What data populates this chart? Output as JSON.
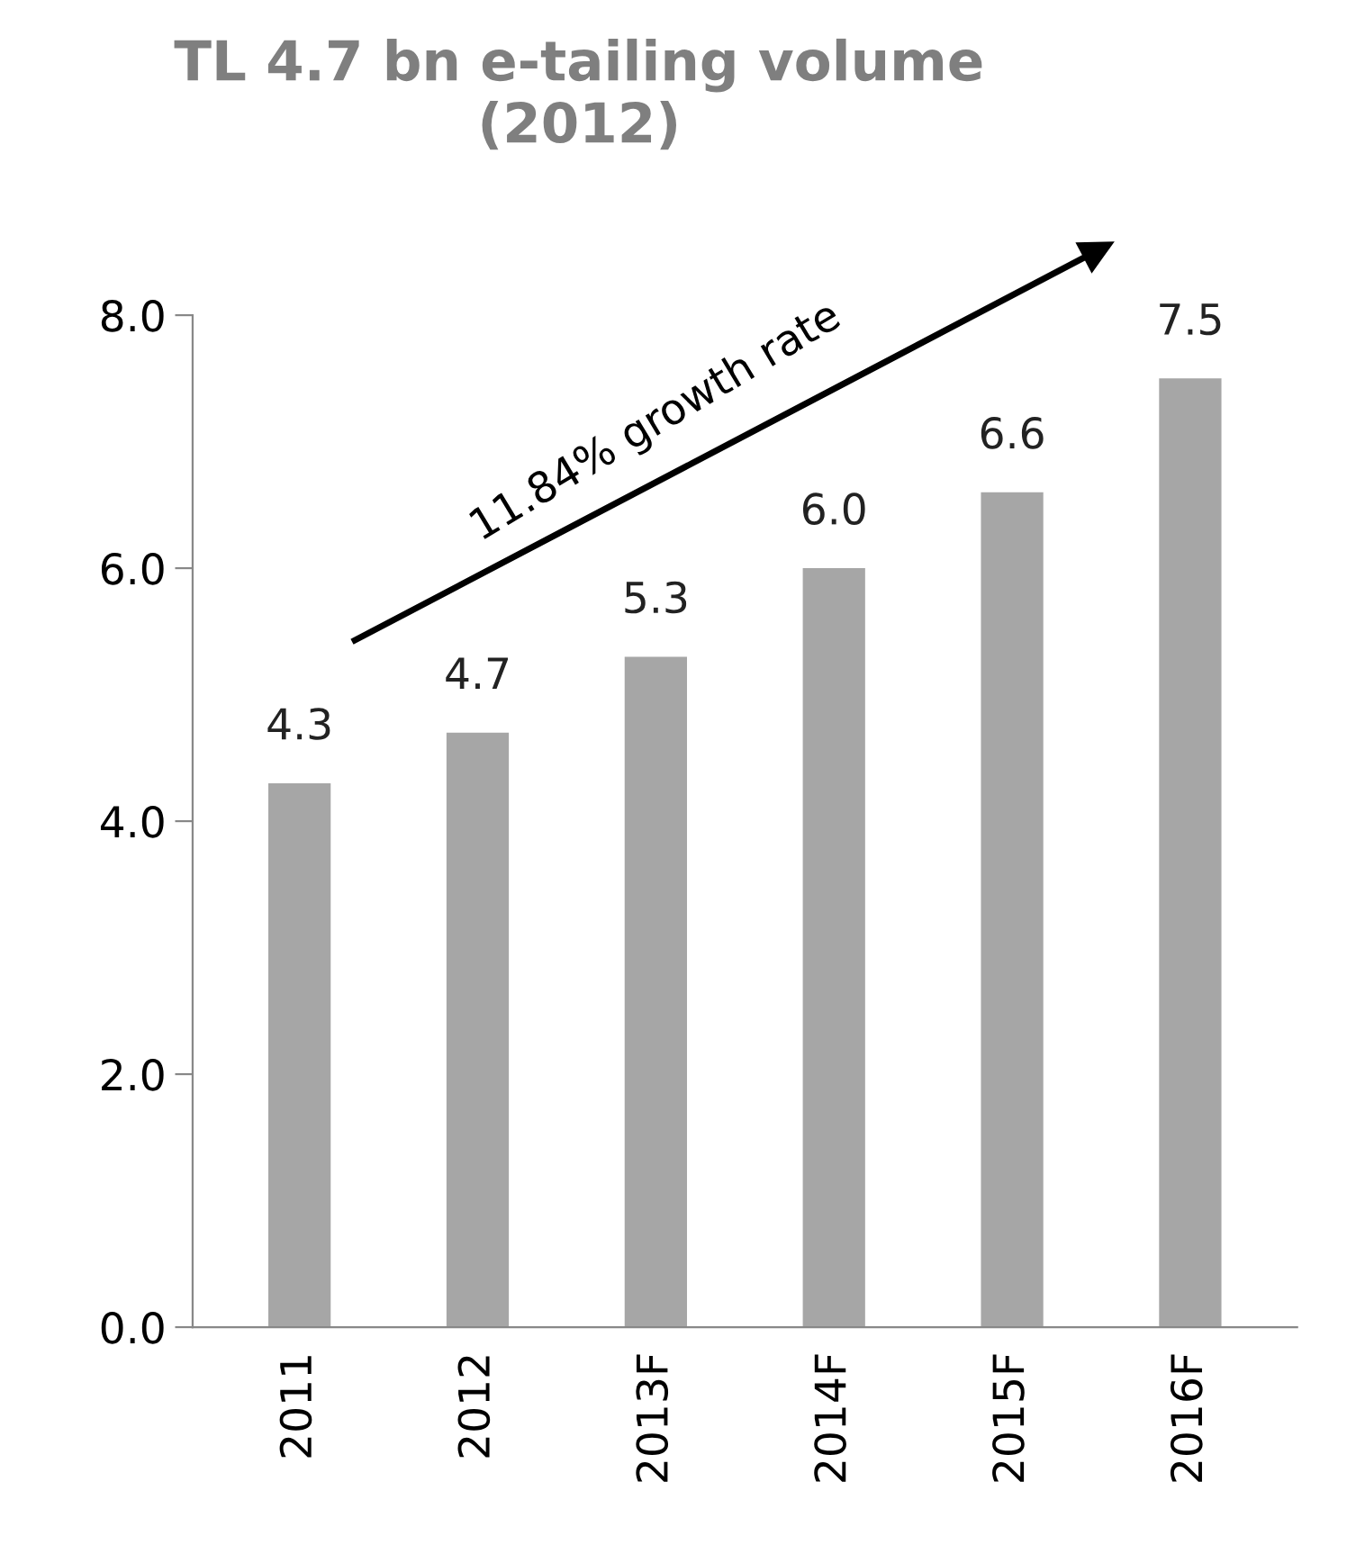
{
  "chart_data": {
    "type": "bar",
    "title": "TL 4.7 bn e-tailing volume\n(2012)",
    "categories": [
      "2011",
      "2012",
      "2013F",
      "2014F",
      "2015F",
      "2016F"
    ],
    "values": [
      4.3,
      4.7,
      5.3,
      6.0,
      6.6,
      7.5
    ],
    "value_labels": [
      "4.3",
      "4.7",
      "5.3",
      "6.0",
      "6.6",
      "7.5"
    ],
    "color": "#a6a6a6",
    "ylim": [
      0,
      8
    ],
    "yticks": [
      {
        "value": 0,
        "label": "0.0"
      },
      {
        "value": 2,
        "label": "2.0"
      },
      {
        "value": 4,
        "label": "4.0"
      },
      {
        "value": 6,
        "label": "6.0"
      },
      {
        "value": 8,
        "label": "8.0"
      }
    ],
    "grid": false,
    "legend": false,
    "annotations": [
      "11.84% growth rate"
    ]
  }
}
